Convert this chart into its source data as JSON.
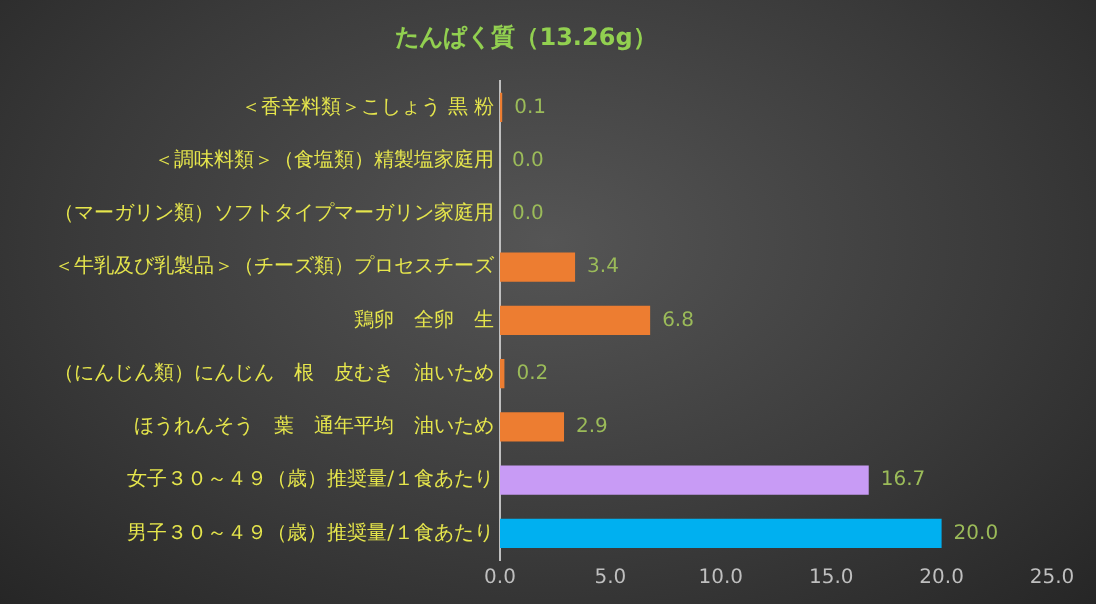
{
  "chart_data": {
    "type": "bar",
    "orientation": "horizontal",
    "title": "たんぱく質（13.26g）",
    "categories": [
      "＜香辛料類＞こしょう 黒 粉",
      "＜調味料類＞（食塩類）精製塩家庭用",
      "（マーガリン類）ソフトタイプマーガリン家庭用",
      "＜牛乳及び乳製品＞（チーズ類）プロセスチーズ",
      "鶏卵　全卵　生",
      "（にんじん類）にんじん　根　皮むき　油いため",
      "ほうれんそう　葉　通年平均　油いため",
      "女子３０～４９（歳）推奨量/１食あたり",
      "男子３０～４９（歳）推奨量/１食あたり"
    ],
    "values": [
      0.1,
      0.0,
      0.0,
      3.4,
      6.8,
      0.2,
      2.9,
      16.7,
      20.0
    ],
    "colors": [
      "#ed7d31",
      "#ed7d31",
      "#ed7d31",
      "#ed7d31",
      "#ed7d31",
      "#ed7d31",
      "#ed7d31",
      "#c89bf5",
      "#00b0f0"
    ],
    "value_labels": [
      "0.1",
      "0.0",
      "0.0",
      "3.4",
      "6.8",
      "0.2",
      "2.9",
      "16.7",
      "20.0"
    ],
    "xlim": [
      0,
      25
    ],
    "xticks": [
      {
        "value": 0,
        "label": "0.0"
      },
      {
        "value": 5,
        "label": "5.0"
      },
      {
        "value": 10,
        "label": "10.0"
      },
      {
        "value": 15,
        "label": "15.0"
      },
      {
        "value": 20,
        "label": "20.0"
      },
      {
        "value": 25,
        "label": "25.0"
      }
    ],
    "grid": false,
    "legend": false
  }
}
